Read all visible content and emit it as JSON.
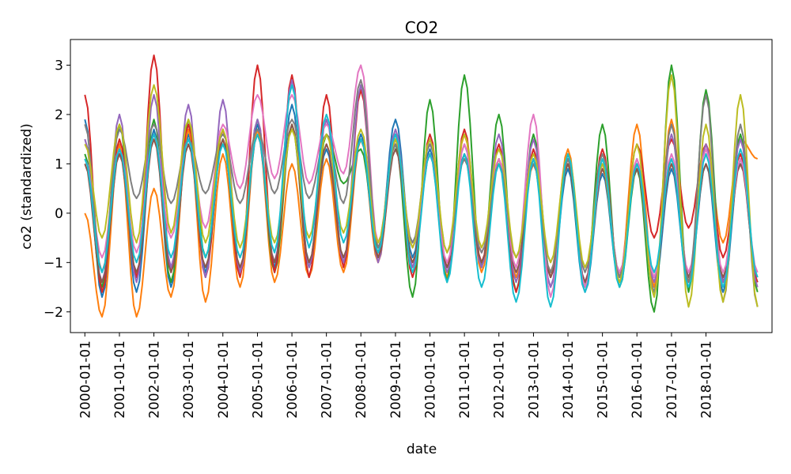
{
  "chart_data": {
    "type": "line",
    "title": "CO2",
    "xlabel": "date",
    "ylabel": "co2 (standardized)",
    "x_tick_labels": [
      "2000-01-01",
      "2001-01-01",
      "2002-01-01",
      "2003-01-01",
      "2004-01-01",
      "2005-01-01",
      "2006-01-01",
      "2007-01-01",
      "2008-01-01",
      "2009-01-01",
      "2010-01-01",
      "2011-01-01",
      "2012-01-01",
      "2013-01-01",
      "2014-01-01",
      "2015-01-01",
      "2016-01-01",
      "2017-01-01",
      "2018-01-01"
    ],
    "y_ticks": [
      -2,
      -1,
      0,
      1,
      2,
      3
    ],
    "y_tick_labels": [
      "−2",
      "−1",
      "0",
      "1",
      "2",
      "3"
    ],
    "xlim": [
      "1999-08-01",
      "2019-12-01"
    ],
    "ylim": [
      -2.42,
      3.52
    ],
    "grid": false,
    "legend": "none",
    "series_colors": [
      "#1f77b4",
      "#ff7f0e",
      "#2ca02c",
      "#d62728",
      "#9467bd",
      "#8c564b",
      "#e377c2",
      "#7f7f7f",
      "#bcbd22",
      "#17becf"
    ],
    "x": [
      "2000-01",
      "2000-07",
      "2001-01",
      "2001-07",
      "2002-01",
      "2002-07",
      "2003-01",
      "2003-07",
      "2004-01",
      "2004-07",
      "2005-01",
      "2005-07",
      "2006-01",
      "2006-07",
      "2007-01",
      "2007-07",
      "2008-01",
      "2008-07",
      "2009-01",
      "2009-07",
      "2010-01",
      "2010-07",
      "2011-01",
      "2011-07",
      "2012-01",
      "2012-07",
      "2013-01",
      "2013-07",
      "2014-01",
      "2014-07",
      "2015-01",
      "2015-07",
      "2016-01",
      "2016-07",
      "2017-01",
      "2017-07",
      "2018-01",
      "2018-07",
      "2019-01",
      "2019-07"
    ],
    "series": [
      {
        "values": [
          1.9,
          -1.7,
          1.3,
          -1.6,
          1.7,
          -1.5,
          1.6,
          -1.2,
          1.5,
          -1.2,
          1.8,
          -1.1,
          2.2,
          -1.0,
          1.3,
          -1.0,
          1.6,
          -0.8,
          1.9,
          -0.9,
          1.3,
          -1.1,
          1.2,
          -1.0,
          1.1,
          -1.3,
          1.1,
          -1.5,
          0.9,
          -1.6,
          0.8,
          -1.4,
          1.0,
          -1.5,
          0.9,
          -1.4,
          1.0,
          -1.6,
          1.1,
          -1.4
        ]
      },
      {
        "values": [
          0.0,
          -2.1,
          1.4,
          -2.1,
          0.5,
          -1.7,
          1.7,
          -1.8,
          1.2,
          -1.5,
          1.7,
          -1.4,
          1.0,
          -1.3,
          1.1,
          -1.2,
          1.5,
          -1.0,
          1.5,
          -1.1,
          1.2,
          -1.3,
          1.6,
          -1.2,
          1.1,
          -1.3,
          1.0,
          -1.2,
          1.3,
          -1.5,
          0.9,
          -1.3,
          1.8,
          -1.5,
          1.9,
          -1.4,
          1.4,
          -0.6,
          1.5,
          1.1
        ]
      },
      {
        "values": [
          1.2,
          -1.5,
          1.8,
          -1.3,
          1.9,
          -1.4,
          1.9,
          -0.9,
          1.5,
          -1.2,
          1.9,
          -1.2,
          1.8,
          -1.1,
          1.6,
          0.6,
          1.3,
          -0.7,
          1.4,
          -1.7,
          2.3,
          -1.4,
          2.8,
          -1.1,
          2.0,
          -1.6,
          1.6,
          -1.3,
          1.0,
          -1.5,
          1.8,
          -1.5,
          0.9,
          -2.0,
          3.0,
          -1.6,
          2.5,
          -1.4,
          1.6,
          -1.6
        ]
      },
      {
        "values": [
          2.4,
          -1.6,
          1.5,
          -1.3,
          3.2,
          -1.2,
          1.8,
          -1.3,
          1.7,
          -1.3,
          3.0,
          -1.2,
          2.8,
          -1.3,
          2.4,
          -1.1,
          2.5,
          -0.9,
          1.6,
          -1.3,
          1.6,
          -1.1,
          1.7,
          -1.0,
          1.4,
          -1.6,
          1.3,
          -1.3,
          1.1,
          -1.4,
          1.3,
          -1.3,
          1.4,
          -0.5,
          1.5,
          -0.3,
          1.4,
          -0.9,
          1.2,
          -1.4
        ]
      },
      {
        "values": [
          1.5,
          -1.4,
          2.0,
          -1.4,
          2.4,
          -1.1,
          2.2,
          -1.3,
          2.3,
          -1.2,
          1.9,
          -1.0,
          2.7,
          -1.1,
          1.9,
          -1.0,
          2.6,
          -1.0,
          1.7,
          -1.1,
          1.5,
          -1.2,
          1.4,
          -1.1,
          1.6,
          -1.4,
          1.5,
          -1.5,
          1.2,
          -1.4,
          1.0,
          -1.3,
          1.1,
          -1.4,
          1.6,
          -1.3,
          1.4,
          -1.4,
          1.5,
          -1.5
        ]
      },
      {
        "values": [
          1.0,
          -1.4,
          1.2,
          -1.2,
          1.5,
          -1.2,
          1.4,
          -1.1,
          1.5,
          -1.1,
          1.6,
          -1.0,
          1.8,
          -1.0,
          1.4,
          -0.9,
          1.5,
          -0.9,
          1.3,
          -1.0,
          1.2,
          -1.1,
          1.2,
          -1.0,
          1.1,
          -1.2,
          1.1,
          -1.3,
          1.0,
          -1.4,
          0.9,
          -1.2,
          0.9,
          -1.3,
          1.0,
          -1.3,
          1.0,
          -1.3,
          1.0,
          -1.3
        ]
      },
      {
        "values": [
          1.1,
          -0.9,
          1.3,
          -0.8,
          1.6,
          -0.5,
          1.5,
          -0.3,
          1.8,
          0.5,
          2.4,
          0.7,
          2.4,
          0.6,
          1.8,
          0.8,
          3.0,
          -0.6,
          1.5,
          -0.7,
          1.2,
          -1.0,
          1.4,
          -0.8,
          1.1,
          -1.1,
          2.0,
          -1.7,
          1.2,
          -1.5,
          1.0,
          -1.2,
          1.1,
          -1.3,
          1.2,
          -1.2,
          1.3,
          -1.2,
          1.1,
          -1.2
        ]
      },
      {
        "values": [
          1.8,
          -1.2,
          1.7,
          0.3,
          1.8,
          0.2,
          1.5,
          0.4,
          1.6,
          0.2,
          1.7,
          0.4,
          1.9,
          0.3,
          1.6,
          0.2,
          2.7,
          -0.7,
          1.4,
          -0.6,
          1.4,
          -0.8,
          1.1,
          -0.8,
          1.0,
          -0.9,
          1.0,
          -1.2,
          1.1,
          -1.2,
          1.2,
          -1.3,
          1.0,
          -1.6,
          1.8,
          -1.4,
          2.4,
          -1.8,
          1.8,
          -1.9
        ]
      },
      {
        "values": [
          1.4,
          -0.5,
          1.8,
          -0.6,
          2.6,
          -0.4,
          1.9,
          -0.6,
          1.7,
          -0.7,
          1.6,
          -0.6,
          1.7,
          -0.5,
          1.6,
          -0.4,
          1.7,
          -0.6,
          1.5,
          -0.7,
          1.5,
          -0.8,
          1.6,
          -0.7,
          1.3,
          -0.9,
          1.2,
          -1.0,
          1.2,
          -1.1,
          1.0,
          -1.4,
          1.4,
          -1.7,
          2.8,
          -1.9,
          1.8,
          -1.8,
          2.4,
          -1.9
        ]
      },
      {
        "values": [
          1.1,
          -1.2,
          1.3,
          -1.0,
          1.6,
          -0.9,
          1.5,
          -0.9,
          1.4,
          -0.9,
          1.6,
          -0.8,
          2.6,
          -0.7,
          2.0,
          -0.6,
          1.5,
          -0.8,
          1.6,
          -1.2,
          1.2,
          -1.4,
          1.2,
          -1.5,
          1.0,
          -1.8,
          1.1,
          -1.9,
          1.2,
          -1.6,
          1.1,
          -1.5,
          1.0,
          -1.2,
          1.1,
          -1.5,
          1.2,
          -1.5,
          1.3,
          -1.3
        ]
      }
    ]
  }
}
